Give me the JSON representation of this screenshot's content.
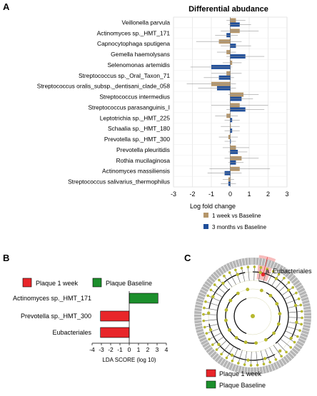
{
  "panels": {
    "a": "A",
    "b": "B",
    "c": "C"
  },
  "chart_data": [
    {
      "panel": "A",
      "type": "bar",
      "orientation": "horizontal",
      "title": "Differential abudance",
      "xlabel": "Log fold change",
      "xlim": [
        -3,
        3
      ],
      "xticks": [
        "-3",
        "-2",
        "-1",
        "0",
        "1",
        "2",
        "3"
      ],
      "grid": true,
      "legend_position": "bottom",
      "categories": [
        "Veillonella parvula",
        "Actinomyces sp._HMT_171",
        "Capnocytophaga sputigena",
        "Gemella haemolysans",
        "Selenomonas artemidis",
        "Streptococcus sp._Oral_Taxon_71",
        "Streptococcus oralis_subsp._dentisani_clade_058",
        "Streptococcus intermedius",
        "Streptococcus parasanguinis_I",
        "Leptotrichia sp._HMT_225",
        "Schaalia sp._HMT_180",
        "Prevotella sp._HMT_300",
        "Prevotella pleuritidis",
        "Rothia mucilaginosa",
        "Actinomyces massiliensis",
        "Streptococcus salivarius_thermophilus"
      ],
      "series": [
        {
          "name": "1 week vs Baseline",
          "color": "#b5966a",
          "values": [
            0.3,
            0.5,
            -0.6,
            -0.2,
            0.1,
            -0.2,
            -1.0,
            0.7,
            0.5,
            -0.2,
            0.0,
            -0.1,
            0.3,
            0.6,
            0.5,
            -0.1
          ],
          "errors": [
            0.5,
            1.0,
            1.2,
            0.5,
            0.5,
            0.8,
            1.3,
            0.8,
            1.5,
            0.6,
            0.5,
            0.5,
            0.7,
            0.9,
            1.6,
            0.3
          ]
        },
        {
          "name": "3 months vs Baseline",
          "color": "#1f4e9a",
          "values": [
            0.5,
            -0.2,
            0.3,
            0.8,
            -1.0,
            -0.6,
            -0.7,
            0.6,
            0.8,
            0.1,
            0.1,
            0.0,
            0.4,
            0.3,
            -0.3,
            -0.1
          ],
          "errors": [
            0.6,
            0.6,
            0.8,
            1.0,
            1.1,
            0.8,
            1.0,
            0.6,
            1.0,
            0.4,
            0.4,
            0.3,
            0.5,
            0.4,
            0.9,
            0.4
          ]
        }
      ]
    },
    {
      "panel": "B",
      "type": "bar",
      "orientation": "horizontal",
      "xlabel": "LDA SCORE (log 10)",
      "xlim": [
        -4,
        4
      ],
      "xticks": [
        "-4",
        "-3",
        "-2",
        "-1",
        "0",
        "1",
        "2",
        "3",
        "4"
      ],
      "legend_position": "top",
      "categories": [
        "Actinomyces sp._HMT_171",
        "Prevotella sp._HMT_300",
        "Eubacteriales"
      ],
      "values": [
        3.1,
        -3.1,
        -3.1
      ],
      "groups": [
        "Plaque Baseline",
        "Plaque 1 week",
        "Plaque 1 week"
      ],
      "legend": [
        {
          "name": "Plaque 1 week",
          "color": "#e8262a"
        },
        {
          "name": "Plaque Baseline",
          "color": "#1c8f2c"
        }
      ]
    }
  ],
  "cladogram": {
    "panel": "C",
    "annotation": "a. Eubacteriales",
    "highlight_color": "#f4a6a6",
    "node_color": "#b7b82e",
    "ring_color": "#b5b5b5",
    "legend": [
      {
        "name": "Plaque 1 week",
        "color": "#e8262a"
      },
      {
        "name": "Plaque Baseline",
        "color": "#1c8f2c"
      }
    ]
  }
}
